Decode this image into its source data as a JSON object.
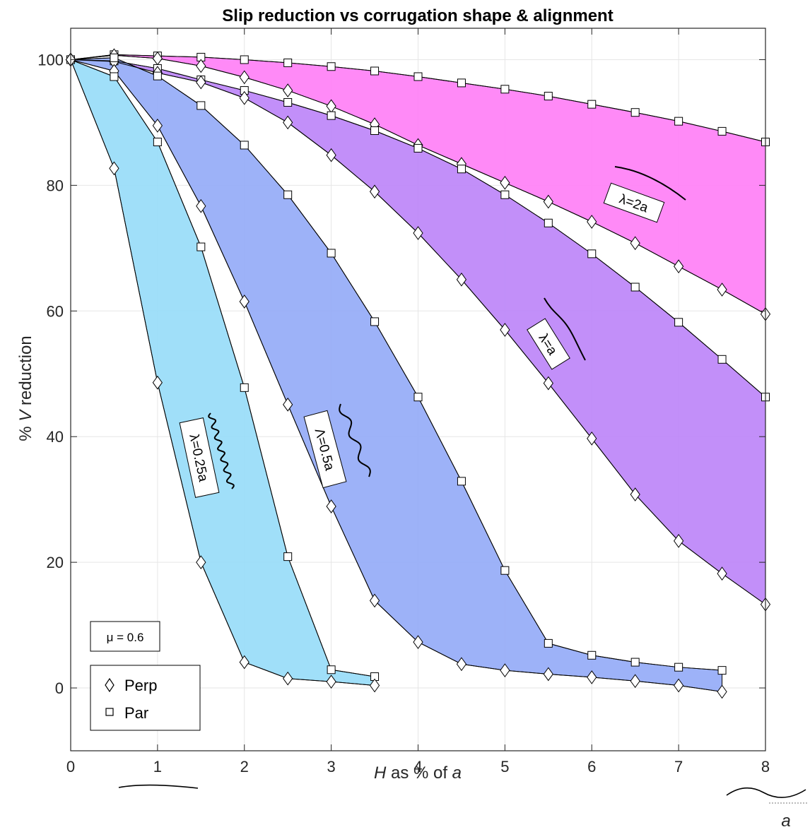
{
  "chart_data": {
    "type": "area",
    "title": "Slip reduction vs corrugation shape & alignment",
    "xlabel_parts": [
      "H",
      " as % of ",
      "a"
    ],
    "ylabel_parts": [
      "% ",
      "V",
      " reduction"
    ],
    "xlim": [
      0,
      8
    ],
    "ylim": [
      -10,
      105
    ],
    "xticks": [
      0,
      1,
      2,
      3,
      4,
      5,
      6,
      7,
      8
    ],
    "yticks": [
      0,
      20,
      40,
      60,
      80,
      100
    ],
    "grid": true,
    "legend": {
      "placement": "bottom-left",
      "entries": [
        {
          "marker": "diamond",
          "label": "Perp"
        },
        {
          "marker": "square",
          "label": "Par"
        }
      ]
    },
    "annotation_mu": "μ = 0.6",
    "corner_symbol": "a",
    "bands": [
      {
        "label": "λ=2a",
        "color": "#ff80f6",
        "par": {
          "x": [
            0,
            0.5,
            1,
            1.5,
            2,
            2.5,
            3,
            3.5,
            4,
            4.5,
            5,
            5.5,
            6,
            6.5,
            7,
            7.5,
            8
          ],
          "y": [
            100,
            100.8,
            100.6,
            100.4,
            100,
            99.5,
            98.9,
            98.2,
            97.3,
            96.3,
            95.3,
            94.2,
            92.9,
            91.6,
            90.2,
            88.6,
            86.9
          ]
        },
        "perp": {
          "x": [
            0,
            0.5,
            1,
            1.5,
            2,
            2.5,
            3,
            3.5,
            4,
            4.5,
            5,
            5.5,
            6,
            6.5,
            7,
            7.5,
            8
          ],
          "y": [
            100,
            100.7,
            100.2,
            99,
            97.2,
            95.1,
            92.6,
            89.7,
            86.4,
            83.4,
            80.4,
            77.4,
            74.2,
            70.8,
            67.1,
            63.4,
            59.5
          ]
        }
      },
      {
        "label": "λ=a",
        "color": "#bd85f8",
        "par": {
          "x": [
            0,
            0.5,
            1,
            1.5,
            2,
            2.5,
            3,
            3.5,
            4,
            4.5,
            5,
            5.5,
            6,
            6.5,
            7,
            7.5,
            8
          ],
          "y": [
            100,
            99.8,
            98.6,
            96.8,
            95.1,
            93.2,
            91.1,
            88.7,
            85.9,
            82.6,
            78.5,
            74,
            69.1,
            63.8,
            58.2,
            52.3,
            46.3
          ]
        },
        "perp": {
          "x": [
            0,
            0.5,
            1,
            1.5,
            2,
            2.5,
            3,
            3.5,
            4,
            4.5,
            5,
            5.5,
            6,
            6.5,
            7,
            7.5,
            8
          ],
          "y": [
            100,
            99.7,
            97.9,
            96.4,
            93.9,
            90,
            84.8,
            79,
            72.4,
            65,
            57,
            48.5,
            39.7,
            30.8,
            23.4,
            18.2,
            13.3
          ]
        }
      },
      {
        "label": "Λ=0.5a",
        "color": "#95abf7",
        "par": {
          "x": [
            0,
            0.5,
            1,
            1.5,
            2,
            2.5,
            3,
            3.5,
            4,
            4.5,
            5,
            5.5,
            6,
            6.5,
            7,
            7.5
          ],
          "y": [
            100,
            100.3,
            97.4,
            92.7,
            86.4,
            78.5,
            69.2,
            58.3,
            46.3,
            32.9,
            18.7,
            7.1,
            5.2,
            4.1,
            3.3,
            2.8
          ]
        },
        "perp": {
          "x": [
            0,
            0.5,
            1,
            1.5,
            2,
            2.5,
            3,
            3.5,
            4,
            4.5,
            5,
            5.5,
            6,
            6.5,
            7,
            7.5
          ],
          "y": [
            100,
            98.2,
            89.5,
            76.7,
            61.5,
            45.1,
            28.9,
            13.9,
            7.3,
            3.8,
            2.8,
            2.2,
            1.7,
            1.1,
            0.4,
            -0.6
          ]
        }
      },
      {
        "label": "λ=0.25a",
        "color": "#98dcf9",
        "par": {
          "x": [
            0,
            0.5,
            1,
            1.5,
            2,
            2.5,
            3,
            3.5
          ],
          "y": [
            100,
            97.3,
            86.9,
            70.2,
            47.8,
            20.9,
            2.9,
            1.8
          ]
        },
        "perp": {
          "x": [
            0,
            0.5,
            1,
            1.5,
            2,
            2.5,
            3,
            3.5
          ],
          "y": [
            100,
            82.7,
            48.6,
            20,
            4.1,
            1.5,
            1,
            0.4
          ]
        }
      }
    ]
  }
}
